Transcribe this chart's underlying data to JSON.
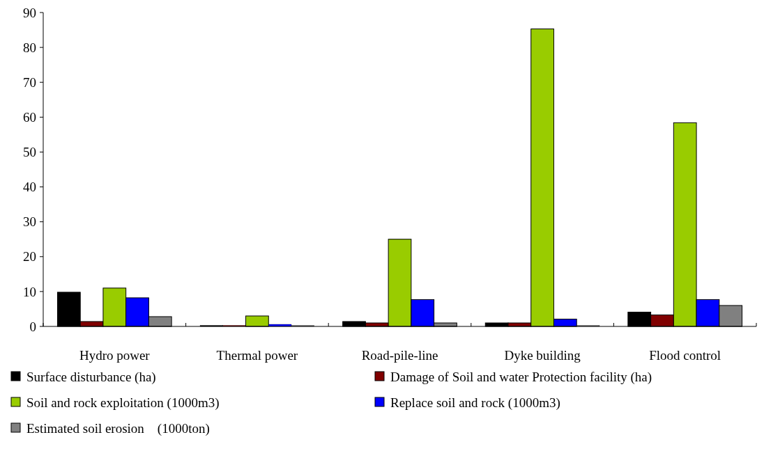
{
  "chart_data": {
    "type": "bar",
    "categories": [
      "Hydro power",
      "Thermal power",
      "Road-pile-line",
      "Dyke building",
      "Flood control"
    ],
    "series": [
      {
        "name": "Surface disturbance (ha)",
        "color": "#000000",
        "values": [
          9.8,
          0.3,
          1.4,
          1.0,
          4.1
        ]
      },
      {
        "name": "Damage of Soil and water Protection facility (ha)",
        "color": "#800000",
        "values": [
          1.4,
          0.3,
          1.0,
          1.0,
          3.3
        ]
      },
      {
        "name": "Soil and rock exploitation (1000m3)",
        "color": "#99cc00",
        "values": [
          11,
          3,
          25,
          85.3,
          58.4
        ]
      },
      {
        "name": "Replace soil and rock (1000m3)",
        "color": "#0000ff",
        "values": [
          8.2,
          0.6,
          7.7,
          2.1,
          7.7
        ]
      },
      {
        "name": "Estimated soil erosion    (1000ton)",
        "color": "#808080",
        "values": [
          2.8,
          0.3,
          1.0,
          0.3,
          6.0
        ]
      }
    ],
    "ylim": [
      0,
      90
    ],
    "yticks": [
      0,
      10,
      20,
      30,
      40,
      50,
      60,
      70,
      80,
      90
    ],
    "grid": false,
    "legend": "bottom"
  }
}
